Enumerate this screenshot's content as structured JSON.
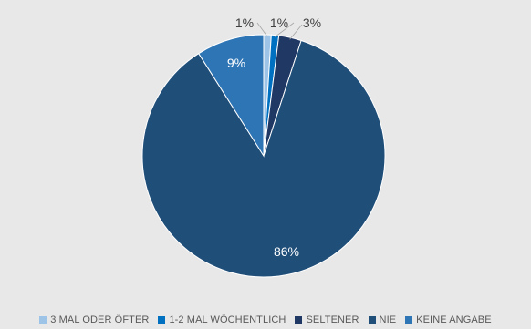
{
  "chart_data": {
    "type": "pie",
    "categories": [
      "3 MAL ODER ÖFTER",
      "1-2 MAL WÖCHENTLICH",
      "SELTENER",
      "NIE",
      "KEINE ANGABE"
    ],
    "values": [
      1,
      1,
      3,
      86,
      9
    ],
    "data_labels": [
      "1%",
      "1%",
      "3%",
      "86%",
      "9%"
    ],
    "colors": [
      "#9dc3e6",
      "#0070c0",
      "#203864",
      "#1f4e79",
      "#2e75b6"
    ],
    "legend_position": "bottom",
    "start_angle_deg": 0,
    "direction": "clockwise"
  }
}
